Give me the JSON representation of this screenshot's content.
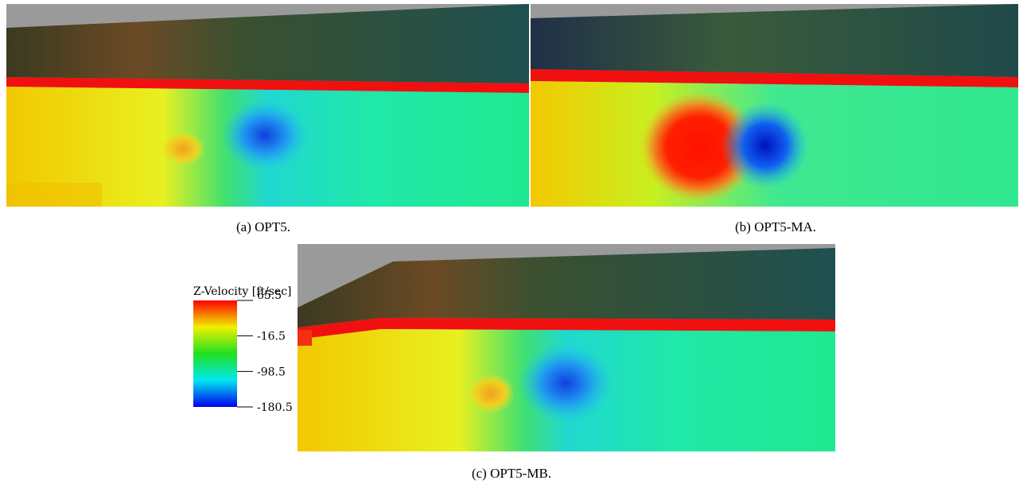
{
  "panels": [
    {
      "caption": "(a) OPT5."
    },
    {
      "caption": "(b) OPT5-MA."
    },
    {
      "caption": "(c) OPT5-MB."
    }
  ],
  "colorbar": {
    "title": "Z-Velocity [ft/sec]",
    "clim": [
      -180.5,
      65.5
    ],
    "ticks": [
      65.5,
      -16.5,
      -98.5,
      -180.5
    ]
  }
}
